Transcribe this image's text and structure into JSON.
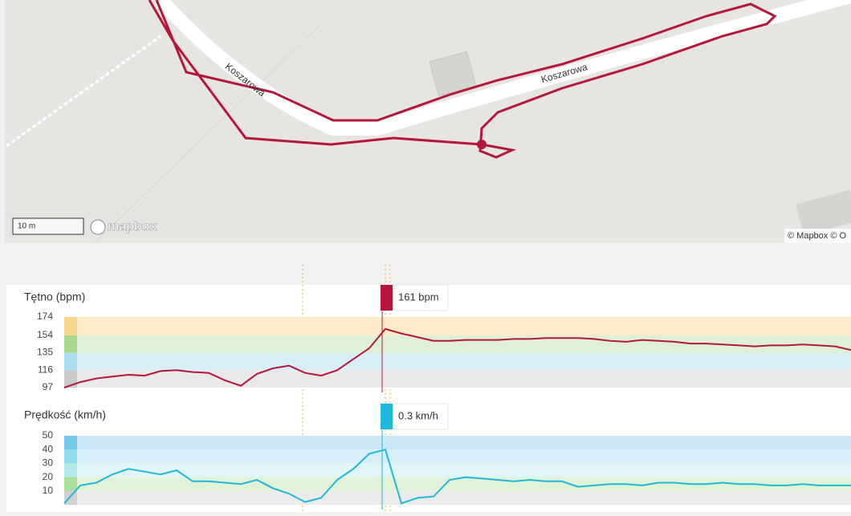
{
  "map": {
    "street_labels": [
      "Koszarowa",
      "Koszarowa"
    ],
    "scale_label": "10 m",
    "logo": "mapbox",
    "attribution": "© Mapbox © O"
  },
  "chart_data": [
    {
      "type": "line",
      "title": "Tętno (bpm)",
      "color": "#b5173a",
      "values": [
        97,
        103,
        107,
        109,
        111,
        110,
        115,
        116,
        114,
        113,
        105,
        99,
        112,
        118,
        121,
        113,
        110,
        116,
        128,
        140,
        161,
        156,
        152,
        148,
        148,
        149,
        149,
        149,
        150,
        150,
        151,
        151,
        151,
        150,
        148,
        147,
        149,
        148,
        147,
        145,
        145,
        144,
        143,
        142,
        143,
        143,
        144,
        143,
        142,
        138
      ],
      "ylim": [
        97,
        174
      ],
      "yticks": [
        97,
        116,
        135,
        154,
        174
      ],
      "band_colors": [
        "#e9e9e9",
        "#d9eff7",
        "#dff0d6",
        "#fdebc8"
      ],
      "swatch_colors": [
        "#c9c9c9",
        "#a8dff2",
        "#a6d98b",
        "#f9d68a"
      ],
      "tooltip": "161 bpm"
    },
    {
      "type": "line",
      "title": "Prędkość (km/h)",
      "color": "#1fb8d8",
      "values": [
        1,
        14,
        16,
        22,
        26,
        24,
        22,
        25,
        17,
        17,
        16,
        15,
        18,
        12,
        8,
        2,
        5,
        18,
        26,
        37,
        40,
        1,
        5,
        6,
        18,
        20,
        19,
        18,
        17,
        18,
        17,
        17,
        13,
        14,
        15,
        15,
        14,
        16,
        16,
        15,
        15,
        16,
        15,
        15,
        14,
        14,
        15,
        14,
        14,
        14
      ],
      "ylim": [
        0,
        50
      ],
      "yticks": [
        10,
        20,
        30,
        40,
        50
      ],
      "band_colors": [
        "#ebebeb",
        "#e0f3d9",
        "#e0f5f5",
        "#d5eff8",
        "#cbe8f6"
      ],
      "swatch_colors": [
        "#d0d0d0",
        "#a8e09a",
        "#b0ebea",
        "#8edcf0",
        "#74cbea"
      ],
      "tooltip": "0.3 km/h"
    }
  ]
}
